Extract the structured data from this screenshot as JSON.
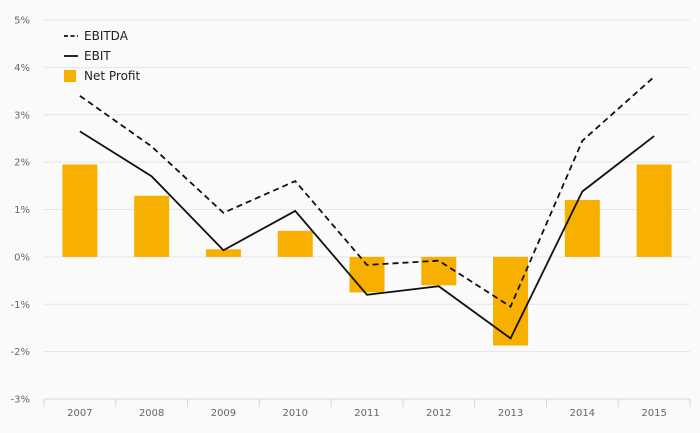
{
  "chart_data": {
    "type": "bar+line",
    "categories": [
      "2007",
      "2008",
      "2009",
      "2010",
      "2011",
      "2012",
      "2013",
      "2014",
      "2015"
    ],
    "y_unit": "%",
    "ylim": [
      -3,
      5
    ],
    "yticks": [
      -3,
      -2,
      -1,
      0,
      1,
      2,
      3,
      4,
      5
    ],
    "ytick_labels": [
      "-3%",
      "-2%",
      "-1%",
      "0%",
      "1%",
      "2%",
      "3%",
      "4%",
      "5%"
    ],
    "grid": true,
    "legend_position": "top-left",
    "series": [
      {
        "name": "EBITDA",
        "type": "line",
        "style": "dashed",
        "color": "#111111",
        "values": [
          3.4,
          2.33,
          0.93,
          1.6,
          -0.17,
          -0.08,
          -1.05,
          2.45,
          3.8
        ]
      },
      {
        "name": "EBIT",
        "type": "line",
        "style": "solid",
        "color": "#111111",
        "values": [
          2.65,
          1.7,
          0.14,
          0.97,
          -0.8,
          -0.62,
          -1.72,
          1.38,
          2.55
        ]
      },
      {
        "name": "Net Profit",
        "type": "bar",
        "color": "#f7b000",
        "values": [
          1.95,
          1.29,
          0.16,
          0.55,
          -0.75,
          -0.6,
          -1.87,
          1.2,
          1.95
        ]
      }
    ]
  }
}
